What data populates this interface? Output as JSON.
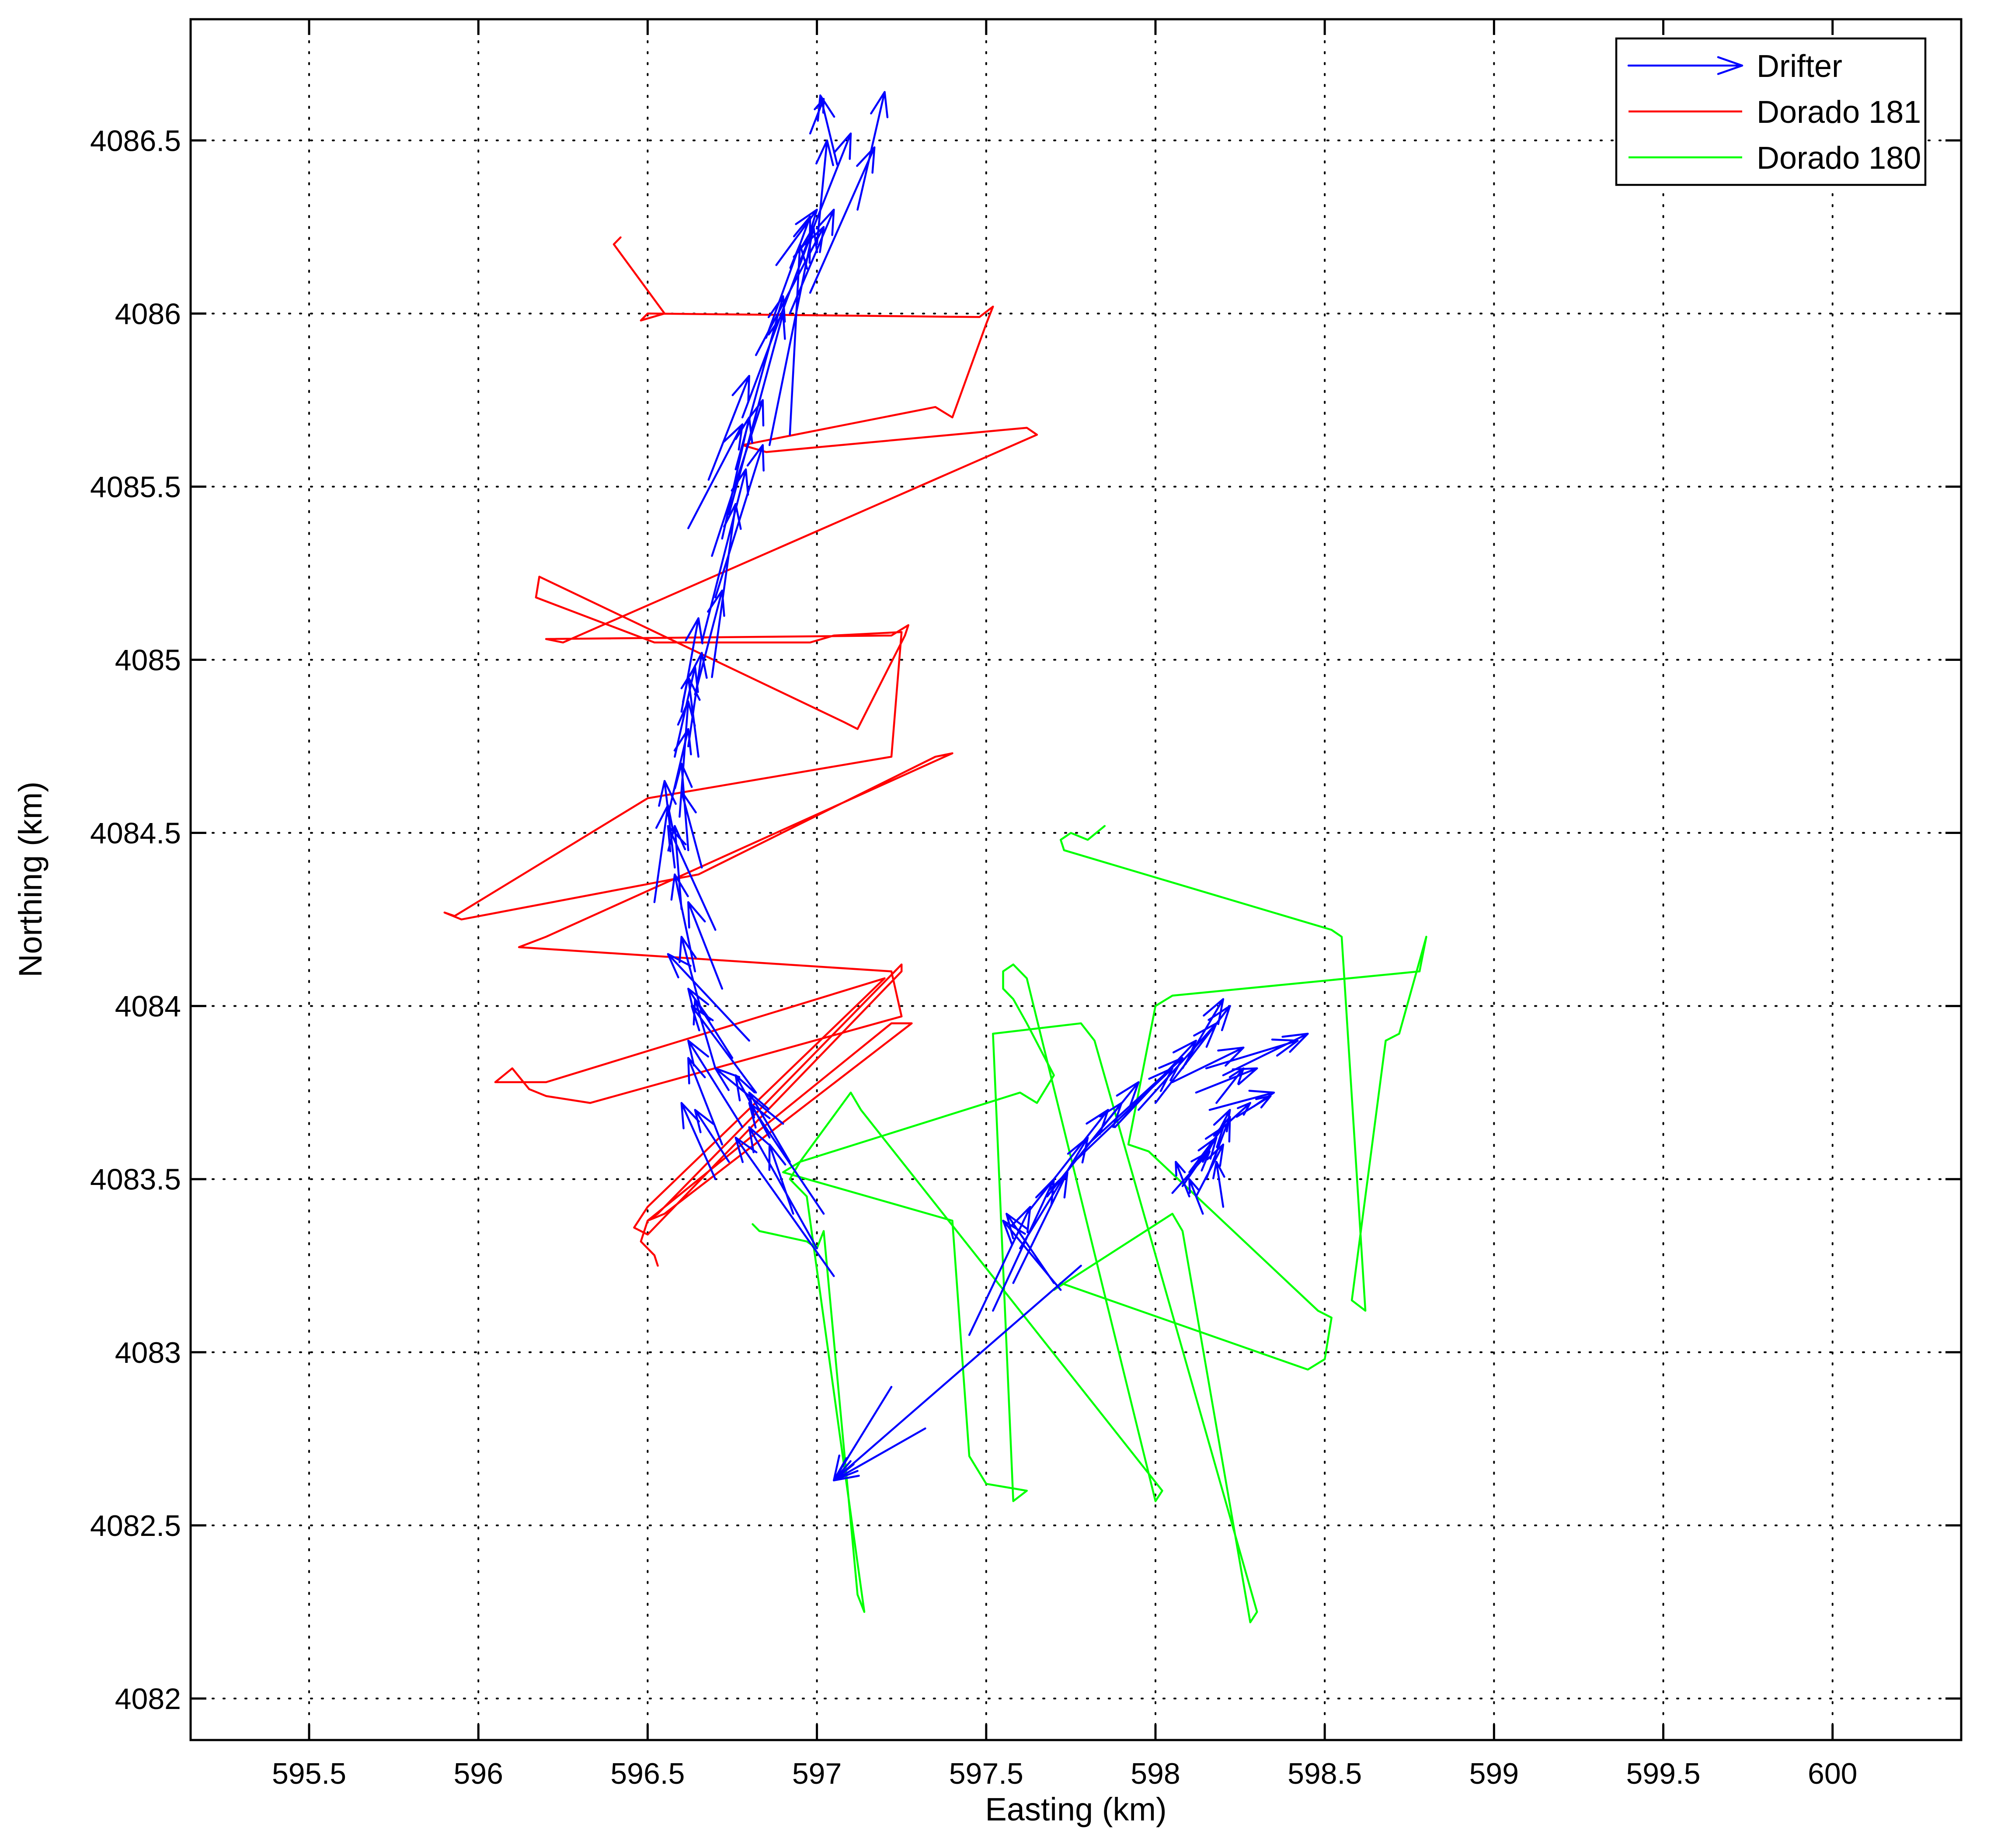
{
  "chart_data": {
    "type": "line",
    "title": "",
    "xlabel": "Easting (km)",
    "ylabel": "Northing (km)",
    "xlim": [
      595.15,
      600.38
    ],
    "ylim": [
      4081.88,
      4086.85
    ],
    "xticks": [
      595.5,
      596,
      596.5,
      597,
      597.5,
      598,
      598.5,
      599,
      599.5,
      600
    ],
    "yticks": [
      4082,
      4082.5,
      4083,
      4083.5,
      4084,
      4084.5,
      4085,
      4085.5,
      4086,
      4086.5
    ],
    "xtick_labels": [
      "595.5",
      "596",
      "596.5",
      "597",
      "597.5",
      "598",
      "598.5",
      "599",
      "599.5",
      "600"
    ],
    "ytick_labels": [
      "4082",
      "4082.5",
      "4083",
      "4083.5",
      "4084",
      "4084.5",
      "4085",
      "4085.5",
      "4086",
      "4086.5"
    ],
    "grid": true,
    "legend_position": "top-right",
    "series": [
      {
        "name": "Drifter",
        "kind": "vectors",
        "color": "#0000ff",
        "arrows": [
          [
            596.98,
            4086.52,
            597.02,
            4086.62
          ],
          [
            597.06,
            4086.43,
            597.01,
            4086.63
          ],
          [
            597.12,
            4086.3,
            597.2,
            4086.64
          ],
          [
            597.0,
            4086.2,
            597.03,
            4086.5
          ],
          [
            596.95,
            4086.15,
            597.1,
            4086.52
          ],
          [
            596.98,
            4086.06,
            597.17,
            4086.48
          ],
          [
            596.88,
            4086.14,
            597.0,
            4086.3
          ],
          [
            596.92,
            4086.0,
            597.05,
            4086.3
          ],
          [
            596.85,
            4085.93,
            596.98,
            4086.28
          ],
          [
            596.82,
            4085.88,
            597.02,
            4086.25
          ],
          [
            596.78,
            4085.7,
            596.98,
            4086.22
          ],
          [
            596.86,
            4085.62,
            596.99,
            4086.25
          ],
          [
            596.92,
            4085.65,
            596.95,
            4086.2
          ],
          [
            596.76,
            4085.55,
            596.9,
            4086.05
          ],
          [
            596.68,
            4085.52,
            596.8,
            4085.82
          ],
          [
            596.74,
            4085.42,
            596.9,
            4086.0
          ],
          [
            596.72,
            4085.35,
            596.8,
            4085.7
          ],
          [
            596.69,
            4085.3,
            596.84,
            4085.75
          ],
          [
            596.62,
            4085.38,
            596.78,
            4085.68
          ],
          [
            596.7,
            4085.18,
            596.84,
            4085.62
          ],
          [
            596.66,
            4085.05,
            596.79,
            4085.55
          ],
          [
            596.69,
            4084.95,
            596.76,
            4085.45
          ],
          [
            596.64,
            4084.9,
            596.72,
            4085.2
          ],
          [
            596.6,
            4084.85,
            596.65,
            4085.12
          ],
          [
            596.62,
            4084.75,
            596.66,
            4085.02
          ],
          [
            596.58,
            4084.72,
            596.64,
            4084.98
          ],
          [
            596.65,
            4084.72,
            596.62,
            4084.95
          ],
          [
            596.6,
            4084.62,
            596.62,
            4084.88
          ],
          [
            596.56,
            4084.55,
            596.62,
            4084.8
          ],
          [
            596.62,
            4084.45,
            596.6,
            4084.7
          ],
          [
            596.58,
            4084.4,
            596.55,
            4084.65
          ],
          [
            596.52,
            4084.3,
            596.56,
            4084.58
          ],
          [
            596.66,
            4084.4,
            596.6,
            4084.62
          ],
          [
            596.6,
            4084.28,
            596.58,
            4084.52
          ],
          [
            596.7,
            4084.22,
            596.56,
            4084.52
          ],
          [
            596.64,
            4084.1,
            596.58,
            4084.38
          ],
          [
            596.72,
            4084.05,
            596.62,
            4084.3
          ],
          [
            596.66,
            4083.98,
            596.6,
            4084.2
          ],
          [
            596.8,
            4083.9,
            596.56,
            4084.15
          ],
          [
            596.75,
            4083.85,
            596.62,
            4084.05
          ],
          [
            596.7,
            4083.82,
            596.64,
            4084.02
          ],
          [
            596.82,
            4083.75,
            596.63,
            4084.0
          ],
          [
            596.78,
            4083.65,
            596.62,
            4083.9
          ],
          [
            596.72,
            4083.6,
            596.62,
            4083.85
          ],
          [
            596.86,
            4083.62,
            596.76,
            4083.8
          ],
          [
            596.9,
            4083.66,
            596.7,
            4083.82
          ],
          [
            596.92,
            4083.55,
            596.8,
            4083.75
          ],
          [
            596.74,
            4083.55,
            596.64,
            4083.7
          ],
          [
            596.7,
            4083.5,
            596.6,
            4083.72
          ],
          [
            597.0,
            4083.3,
            596.8,
            4083.65
          ],
          [
            597.05,
            4083.22,
            596.76,
            4083.62
          ],
          [
            597.02,
            4083.4,
            596.8,
            4083.72
          ],
          [
            596.93,
            4083.4,
            596.86,
            4083.6
          ],
          [
            597.45,
            4083.05,
            597.63,
            4083.42
          ],
          [
            597.52,
            4083.12,
            597.7,
            4083.5
          ],
          [
            597.58,
            4083.2,
            597.74,
            4083.52
          ],
          [
            597.6,
            4083.3,
            597.8,
            4083.62
          ],
          [
            597.62,
            4083.4,
            597.86,
            4083.7
          ],
          [
            597.68,
            4083.45,
            597.9,
            4083.72
          ],
          [
            597.72,
            4083.5,
            597.95,
            4083.78
          ],
          [
            597.76,
            4083.55,
            598.05,
            4083.82
          ],
          [
            597.8,
            4083.6,
            598.08,
            4083.85
          ],
          [
            597.88,
            4083.65,
            598.12,
            4083.9
          ],
          [
            597.95,
            4083.7,
            598.18,
            4083.95
          ],
          [
            598.0,
            4083.72,
            598.22,
            4084.0
          ],
          [
            598.05,
            4083.78,
            598.26,
            4083.88
          ],
          [
            598.08,
            4083.82,
            598.2,
            4084.02
          ],
          [
            598.15,
            4083.82,
            598.42,
            4083.9
          ],
          [
            598.2,
            4083.8,
            598.45,
            4083.92
          ],
          [
            598.12,
            4083.75,
            598.3,
            4083.82
          ],
          [
            598.16,
            4083.7,
            598.35,
            4083.75
          ],
          [
            598.18,
            4083.72,
            598.26,
            4083.82
          ],
          [
            598.24,
            4083.68,
            598.34,
            4083.74
          ],
          [
            598.2,
            4083.65,
            598.28,
            4083.72
          ],
          [
            598.14,
            4083.55,
            598.22,
            4083.7
          ],
          [
            598.1,
            4083.52,
            598.2,
            4083.65
          ],
          [
            598.08,
            4083.48,
            598.18,
            4083.62
          ],
          [
            598.05,
            4083.46,
            598.16,
            4083.58
          ],
          [
            598.12,
            4083.45,
            598.2,
            4083.6
          ],
          [
            598.15,
            4083.5,
            598.22,
            4083.68
          ],
          [
            598.1,
            4083.45,
            598.06,
            4083.55
          ],
          [
            598.14,
            4083.4,
            598.1,
            4083.5
          ],
          [
            598.2,
            4083.42,
            598.18,
            4083.55
          ],
          [
            597.72,
            4083.18,
            597.55,
            4083.38
          ],
          [
            597.7,
            4083.2,
            597.56,
            4083.4
          ],
          [
            597.78,
            4083.25,
            597.05,
            4082.63
          ],
          [
            597.32,
            4082.78,
            597.05,
            4082.63
          ],
          [
            597.22,
            4082.9,
            597.05,
            4082.63
          ]
        ]
      },
      {
        "name": "Dorado 181",
        "kind": "track",
        "color": "#ff0000",
        "x": [
          596.53,
          596.52,
          596.48,
          596.5,
          596.55,
          597.28,
          597.22,
          596.5,
          596.53,
          597.25,
          597.25,
          596.5,
          596.46,
          596.5,
          597.2,
          596.2,
          596.05,
          596.1,
          596.15,
          596.2,
          596.33,
          597.25,
          597.22,
          596.12,
          596.2,
          597.4,
          597.35,
          596.65,
          595.95,
          595.9,
          595.93,
          596.5,
          597.22,
          597.25,
          597.05,
          596.98,
          596.52,
          596.17,
          596.18,
          597.08,
          597.12,
          597.26,
          597.27,
          597.22,
          596.2,
          596.25,
          597.65,
          597.62,
          596.85,
          596.78,
          597.35,
          597.4,
          597.5,
          597.52,
          597.48,
          596.5,
          596.48,
          596.55,
          596.4,
          596.42
        ],
        "y": [
          4083.25,
          4083.28,
          4083.32,
          4083.38,
          4083.4,
          4083.95,
          4083.95,
          4083.38,
          4083.4,
          4084.12,
          4084.1,
          4083.34,
          4083.36,
          4083.42,
          4084.08,
          4083.78,
          4083.78,
          4083.82,
          4083.76,
          4083.74,
          4083.72,
          4083.97,
          4084.1,
          4084.17,
          4084.2,
          4084.73,
          4084.72,
          4084.38,
          4084.25,
          4084.27,
          4084.26,
          4084.6,
          4084.72,
          4085.08,
          4085.07,
          4085.05,
          4085.05,
          4085.18,
          4085.24,
          4084.82,
          4084.8,
          4085.07,
          4085.1,
          4085.07,
          4085.06,
          4085.05,
          4085.65,
          4085.67,
          4085.6,
          4085.62,
          4085.73,
          4085.7,
          4085.97,
          4086.02,
          4085.99,
          4086.0,
          4085.98,
          4086.0,
          4086.2,
          4086.22
        ]
      },
      {
        "name": "Dorado 180",
        "kind": "track",
        "color": "#00ff00",
        "x": [
          596.81,
          596.83,
          596.97,
          597.0,
          597.02,
          597.12,
          597.14,
          596.97,
          596.92,
          596.95,
          597.6,
          597.65,
          597.7,
          597.62,
          597.58,
          597.55,
          597.55,
          597.58,
          597.62,
          598.0,
          598.02,
          597.13,
          597.1,
          596.95,
          596.9,
          597.4,
          597.45,
          597.5,
          597.62,
          597.58,
          597.52,
          597.78,
          597.82,
          598.3,
          598.28,
          598.08,
          598.05,
          597.7,
          597.72,
          598.45,
          598.5,
          598.52,
          598.48,
          597.98,
          597.92,
          598.0,
          598.05,
          598.78,
          598.8,
          598.72,
          598.68,
          598.58,
          598.62,
          598.55,
          598.52,
          597.73,
          597.72,
          597.75,
          597.8,
          597.85
        ],
        "y": [
          4083.37,
          4083.35,
          4083.32,
          4083.3,
          4083.35,
          4082.3,
          4082.25,
          4083.45,
          4083.5,
          4083.55,
          4083.75,
          4083.72,
          4083.8,
          4083.95,
          4084.02,
          4084.05,
          4084.1,
          4084.12,
          4084.08,
          4082.57,
          4082.6,
          4083.7,
          4083.75,
          4083.55,
          4083.52,
          4083.38,
          4082.7,
          4082.62,
          4082.6,
          4082.57,
          4083.92,
          4083.95,
          4083.9,
          4082.25,
          4082.22,
          4083.35,
          4083.4,
          4083.18,
          4083.2,
          4082.95,
          4082.98,
          4083.1,
          4083.12,
          4083.58,
          4083.6,
          4084.0,
          4084.03,
          4084.1,
          4084.2,
          4083.92,
          4083.9,
          4083.15,
          4083.12,
          4084.2,
          4084.22,
          4084.45,
          4084.48,
          4084.5,
          4084.48,
          4084.52
        ]
      }
    ]
  }
}
